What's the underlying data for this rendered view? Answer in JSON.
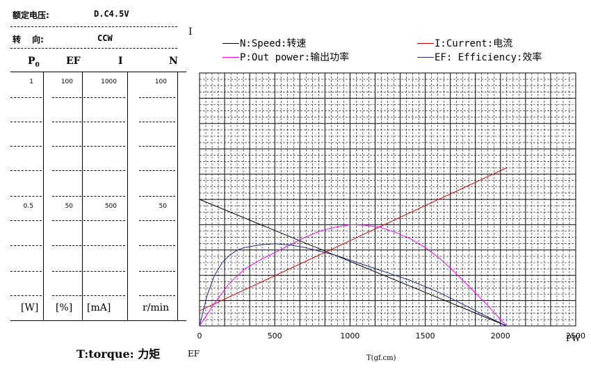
{
  "header": {
    "voltage_label": "额定电压:",
    "voltage_value": "D.C4.5V",
    "direction_label": "转　 向:",
    "direction_value": "CCW"
  },
  "table": {
    "columns": [
      {
        "head": "P",
        "head_sub": "0",
        "top": "1",
        "mid": "0.5",
        "unit": "[W]"
      },
      {
        "head": "EF",
        "head_sub": "",
        "top": "100",
        "mid": "50",
        "unit": "[%]"
      },
      {
        "head": "I",
        "head_sub": "",
        "top": "1000",
        "mid": "500",
        "unit": "[mA]"
      },
      {
        "head": "N",
        "head_sub": "",
        "top": "100",
        "mid": "50",
        "unit": "r/min"
      }
    ]
  },
  "labels": {
    "torque_label": "T:torque: 力矩",
    "ef_side": "EF",
    "i_side": "I",
    "pw_side": "PW",
    "x_axis_title": "T(gf.cm)"
  },
  "legend": [
    {
      "text": "N:Speed:转速",
      "color": "#000000"
    },
    {
      "text": "I:Current:电流",
      "color": "#e00000"
    },
    {
      "text": "P:Out power:输出功率",
      "color": "#ff00ff"
    },
    {
      "text": "EF: Efficiency:效率",
      "color": "#1a2a8c"
    }
  ],
  "chart_data": {
    "type": "line",
    "xlabel": "T(gf.cm)",
    "xlim": [
      0,
      2500
    ],
    "ylim": [
      0,
      1
    ],
    "x_ticks": [
      "0",
      "500",
      "1000",
      "1500",
      "2000",
      "2500"
    ],
    "grid": true,
    "y_scale_note": "y as fraction of full scale: P 0–1 W, EF 0–100 %, I 0–1000 mA, N 0–100 r/min",
    "series": [
      {
        "name": "N:Speed:转速",
        "color": "#000000",
        "points": [
          [
            0,
            0.5
          ],
          [
            2040,
            0.0
          ]
        ]
      },
      {
        "name": "I:Current:电流",
        "color": "#e00000",
        "points": [
          [
            0,
            0.06
          ],
          [
            2040,
            0.625
          ]
        ]
      },
      {
        "name": "P:Out power:输出功率",
        "color": "#ff00ff",
        "points": [
          [
            0,
            0.0
          ],
          [
            100,
            0.09
          ],
          [
            200,
            0.17
          ],
          [
            300,
            0.225
          ],
          [
            400,
            0.26
          ],
          [
            500,
            0.29
          ],
          [
            600,
            0.32
          ],
          [
            700,
            0.35
          ],
          [
            800,
            0.375
          ],
          [
            900,
            0.39
          ],
          [
            1000,
            0.4
          ],
          [
            1100,
            0.398
          ],
          [
            1200,
            0.39
          ],
          [
            1300,
            0.37
          ],
          [
            1400,
            0.345
          ],
          [
            1500,
            0.31
          ],
          [
            1600,
            0.265
          ],
          [
            1700,
            0.21
          ],
          [
            1800,
            0.15
          ],
          [
            1900,
            0.09
          ],
          [
            2040,
            0.0
          ]
        ]
      },
      {
        "name": "EF: Efficiency:效率",
        "color": "#1a2a8c",
        "points": [
          [
            0,
            0.0
          ],
          [
            50,
            0.12
          ],
          [
            100,
            0.2
          ],
          [
            150,
            0.25
          ],
          [
            200,
            0.28
          ],
          [
            250,
            0.3
          ],
          [
            300,
            0.31
          ],
          [
            400,
            0.32
          ],
          [
            500,
            0.325
          ],
          [
            600,
            0.32
          ],
          [
            700,
            0.31
          ],
          [
            800,
            0.295
          ],
          [
            900,
            0.28
          ],
          [
            1000,
            0.26
          ],
          [
            1100,
            0.24
          ],
          [
            1200,
            0.22
          ],
          [
            1300,
            0.2
          ],
          [
            1400,
            0.18
          ],
          [
            1500,
            0.155
          ],
          [
            1600,
            0.13
          ],
          [
            1700,
            0.1
          ],
          [
            1800,
            0.07
          ],
          [
            1900,
            0.04
          ],
          [
            2040,
            0.0
          ]
        ]
      }
    ]
  }
}
